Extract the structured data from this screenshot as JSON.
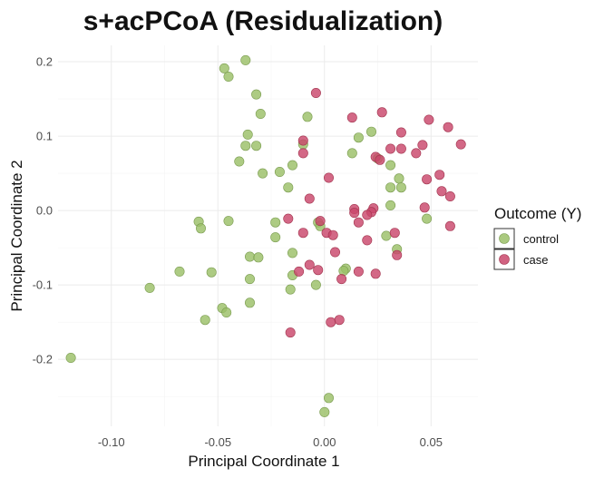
{
  "chart_data": {
    "type": "scatter",
    "title": "s+acPCoA (Residualization)",
    "xlabel": "Principal Coordinate 1",
    "ylabel": "Principal Coordinate 2",
    "xlim": [
      -0.125,
      0.072
    ],
    "ylim": [
      -0.29,
      0.222
    ],
    "x_ticks": [
      -0.1,
      -0.05,
      0.0,
      0.05
    ],
    "x_tick_labels": [
      "-0.10",
      "-0.05",
      "0.00",
      "0.05"
    ],
    "y_ticks": [
      -0.2,
      -0.1,
      0.0,
      0.1,
      0.2
    ],
    "y_tick_labels": [
      "-0.2",
      "-0.1",
      "0.0",
      "0.1",
      "0.2"
    ],
    "grid": true,
    "legend": {
      "title": "Outcome (Y)",
      "position": "right"
    },
    "series": [
      {
        "name": "control",
        "color": "#9bbf68",
        "points": [
          [
            -0.047,
            0.191
          ],
          [
            -0.037,
            0.202
          ],
          [
            -0.045,
            0.18
          ],
          [
            -0.032,
            0.156
          ],
          [
            -0.03,
            0.13
          ],
          [
            -0.008,
            0.126
          ],
          [
            -0.036,
            0.102
          ],
          [
            -0.037,
            0.087
          ],
          [
            -0.032,
            0.087
          ],
          [
            -0.01,
            0.089
          ],
          [
            -0.04,
            0.066
          ],
          [
            -0.021,
            0.052
          ],
          [
            -0.029,
            0.05
          ],
          [
            -0.015,
            0.061
          ],
          [
            -0.017,
            0.031
          ],
          [
            0.016,
            0.098
          ],
          [
            0.022,
            0.106
          ],
          [
            0.013,
            0.077
          ],
          [
            0.025,
            0.07
          ],
          [
            0.031,
            0.061
          ],
          [
            0.035,
            0.043
          ],
          [
            0.031,
            0.031
          ],
          [
            0.036,
            0.031
          ],
          [
            0.031,
            0.007
          ],
          [
            0.048,
            -0.011
          ],
          [
            0.029,
            -0.034
          ],
          [
            0.034,
            -0.052
          ],
          [
            -0.059,
            -0.015
          ],
          [
            -0.058,
            -0.024
          ],
          [
            -0.045,
            -0.014
          ],
          [
            -0.023,
            -0.016
          ],
          [
            -0.023,
            -0.036
          ],
          [
            -0.003,
            -0.016
          ],
          [
            -0.002,
            -0.021
          ],
          [
            -0.015,
            -0.057
          ],
          [
            -0.035,
            -0.062
          ],
          [
            -0.031,
            -0.063
          ],
          [
            -0.068,
            -0.082
          ],
          [
            -0.053,
            -0.083
          ],
          [
            -0.035,
            -0.092
          ],
          [
            -0.015,
            -0.087
          ],
          [
            -0.004,
            -0.1
          ],
          [
            -0.016,
            -0.106
          ],
          [
            -0.082,
            -0.104
          ],
          [
            -0.048,
            -0.131
          ],
          [
            -0.035,
            -0.124
          ],
          [
            -0.046,
            -0.137
          ],
          [
            -0.056,
            -0.147
          ],
          [
            0.01,
            -0.078
          ],
          [
            0.009,
            -0.081
          ],
          [
            -0.119,
            -0.198
          ],
          [
            0.002,
            -0.252
          ],
          [
            0.0,
            -0.271
          ]
        ]
      },
      {
        "name": "case",
        "color": "#c9476b",
        "points": [
          [
            -0.004,
            0.158
          ],
          [
            0.013,
            0.125
          ],
          [
            0.027,
            0.132
          ],
          [
            0.049,
            0.122
          ],
          [
            0.058,
            0.112
          ],
          [
            0.036,
            0.105
          ],
          [
            0.064,
            0.089
          ],
          [
            0.046,
            0.088
          ],
          [
            0.031,
            0.083
          ],
          [
            0.036,
            0.083
          ],
          [
            0.043,
            0.077
          ],
          [
            -0.01,
            0.094
          ],
          [
            -0.01,
            0.077
          ],
          [
            0.024,
            0.072
          ],
          [
            0.026,
            0.068
          ],
          [
            0.054,
            0.048
          ],
          [
            0.048,
            0.042
          ],
          [
            0.002,
            0.044
          ],
          [
            0.055,
            0.026
          ],
          [
            0.059,
            0.019
          ],
          [
            -0.007,
            0.016
          ],
          [
            0.047,
            0.004
          ],
          [
            0.014,
            0.002
          ],
          [
            0.014,
            -0.003
          ],
          [
            0.023,
            0.003
          ],
          [
            0.022,
            -0.002
          ],
          [
            0.02,
            -0.006
          ],
          [
            -0.017,
            -0.011
          ],
          [
            -0.002,
            -0.014
          ],
          [
            0.016,
            -0.016
          ],
          [
            0.059,
            -0.021
          ],
          [
            0.033,
            -0.03
          ],
          [
            0.001,
            -0.03
          ],
          [
            0.004,
            -0.033
          ],
          [
            -0.01,
            -0.03
          ],
          [
            0.02,
            -0.04
          ],
          [
            0.005,
            -0.056
          ],
          [
            -0.007,
            -0.073
          ],
          [
            0.034,
            -0.06
          ],
          [
            -0.003,
            -0.08
          ],
          [
            -0.012,
            -0.082
          ],
          [
            0.008,
            -0.092
          ],
          [
            0.016,
            -0.082
          ],
          [
            0.024,
            -0.085
          ],
          [
            0.003,
            -0.15
          ],
          [
            0.007,
            -0.147
          ],
          [
            -0.016,
            -0.164
          ]
        ]
      }
    ]
  }
}
